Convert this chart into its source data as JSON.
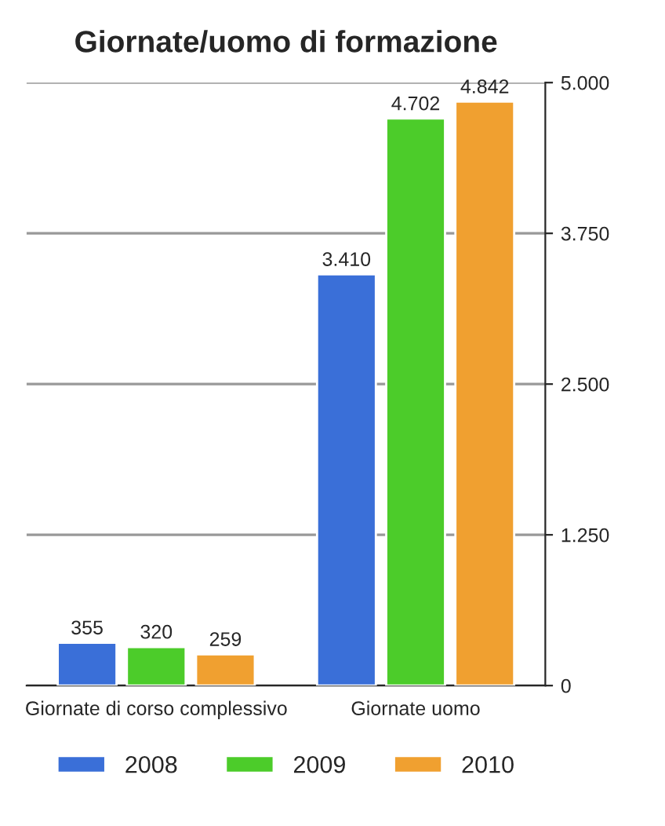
{
  "chart_data": {
    "type": "bar",
    "title": "Giornate/uomo di formazione",
    "categories": [
      "Giornate di corso complessivo",
      "Giornate uomo"
    ],
    "series": [
      {
        "name": "2008",
        "color": "#3a6fd8",
        "values": [
          355,
          3410
        ],
        "value_labels": [
          "355",
          "3.410"
        ]
      },
      {
        "name": "2009",
        "color": "#4ccc2a",
        "values": [
          320,
          4702
        ],
        "value_labels": [
          "320",
          "4.702"
        ]
      },
      {
        "name": "2010",
        "color": "#f0a030",
        "values": [
          259,
          4842
        ],
        "value_labels": [
          "259",
          "4.842"
        ]
      }
    ],
    "ylim": [
      0,
      5000
    ],
    "yticks": [
      {
        "value": 0,
        "label": "0"
      },
      {
        "value": 1250,
        "label": "1.250"
      },
      {
        "value": 2500,
        "label": "2.500"
      },
      {
        "value": 3750,
        "label": "3.750"
      },
      {
        "value": 5000,
        "label": "5.000"
      }
    ],
    "grid": "y",
    "legend": "bottom"
  }
}
